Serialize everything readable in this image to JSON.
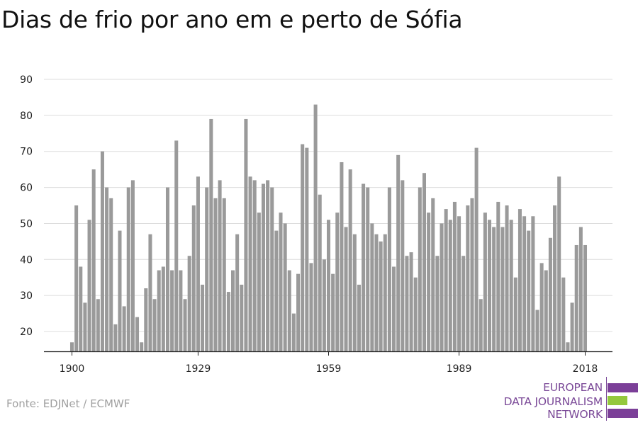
{
  "title": "Dias de frio por ano em e perto de Sófia",
  "source": "Fonte: EDJNet / ECMWF",
  "logo": {
    "line1": "EUROPEAN",
    "line2": "DATA JOURNALISM",
    "line3": "NETWORK",
    "colors": {
      "purple": "#7b3f98",
      "green": "#94c83d"
    }
  },
  "chart_data": {
    "type": "bar",
    "x": [
      1900,
      1901,
      1902,
      1903,
      1904,
      1905,
      1906,
      1907,
      1908,
      1909,
      1910,
      1911,
      1912,
      1913,
      1914,
      1915,
      1916,
      1917,
      1918,
      1919,
      1920,
      1921,
      1922,
      1923,
      1924,
      1925,
      1926,
      1927,
      1928,
      1929,
      1930,
      1931,
      1932,
      1933,
      1934,
      1935,
      1936,
      1937,
      1938,
      1939,
      1940,
      1941,
      1942,
      1943,
      1944,
      1945,
      1946,
      1947,
      1948,
      1949,
      1950,
      1951,
      1952,
      1953,
      1954,
      1955,
      1956,
      1957,
      1958,
      1959,
      1960,
      1961,
      1962,
      1963,
      1964,
      1965,
      1966,
      1967,
      1968,
      1969,
      1970,
      1971,
      1972,
      1973,
      1974,
      1975,
      1976,
      1977,
      1978,
      1979,
      1980,
      1981,
      1982,
      1983,
      1984,
      1985,
      1986,
      1987,
      1988,
      1989,
      1990,
      1991,
      1992,
      1993,
      1994,
      1995,
      1996,
      1997,
      1998,
      1999,
      2000,
      2001,
      2002,
      2003,
      2004,
      2005,
      2006,
      2007,
      2008,
      2009,
      2010,
      2011,
      2012,
      2013,
      2014,
      2015,
      2016,
      2017,
      2018
    ],
    "values": [
      17,
      55,
      38,
      28,
      51,
      65,
      29,
      70,
      60,
      57,
      22,
      48,
      27,
      60,
      62,
      24,
      17,
      32,
      47,
      29,
      37,
      38,
      60,
      37,
      73,
      37,
      29,
      41,
      55,
      63,
      33,
      60,
      79,
      57,
      62,
      57,
      31,
      37,
      47,
      33,
      79,
      63,
      62,
      53,
      61,
      62,
      60,
      48,
      53,
      50,
      37,
      25,
      36,
      72,
      71,
      39,
      83,
      58,
      40,
      51,
      36,
      53,
      67,
      49,
      65,
      47,
      33,
      61,
      60,
      50,
      47,
      45,
      47,
      60,
      38,
      69,
      62,
      41,
      42,
      35,
      60,
      64,
      53,
      57,
      41,
      50,
      54,
      51,
      56,
      52,
      41,
      55,
      57,
      71,
      29,
      53,
      51,
      49,
      56,
      49,
      55,
      51,
      35,
      54,
      52,
      48,
      52,
      26,
      39,
      37,
      46,
      55,
      63,
      35,
      17,
      28,
      44,
      49,
      44
    ],
    "xticks": [
      1900,
      1929,
      1959,
      1989,
      2018
    ],
    "yticks": [
      20,
      30,
      40,
      50,
      60,
      70,
      80,
      90
    ],
    "ylim": [
      14.5,
      90
    ],
    "color": "#9a9a9a",
    "grid": true,
    "xlabel": "",
    "ylabel": ""
  }
}
